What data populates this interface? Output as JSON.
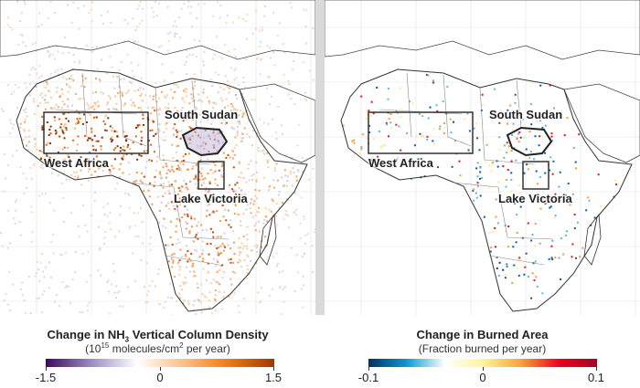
{
  "left_map": {
    "labels": {
      "west_africa": "West Africa",
      "south_sudan": "South Sudan",
      "lake_victoria": "Lake Victoria"
    },
    "legend": {
      "title_prefix": "Change in NH",
      "title_sub": "3",
      "title_suffix": " Vertical Column Density",
      "units_prefix": "(10",
      "units_sup1": "15",
      "units_mid": " molecules/cm",
      "units_sup2": "2",
      "units_suffix": " per year)",
      "ticks": [
        "-1.5",
        "0",
        "1.5"
      ],
      "colors": [
        "#3b0a5c",
        "#9b8cc4",
        "#ffffff",
        "#fdc08a",
        "#f07b12",
        "#9c3a05"
      ]
    }
  },
  "right_map": {
    "labels": {
      "west_africa": "West Africa",
      "south_sudan": "South Sudan",
      "lake_victoria": "Lake Victoria"
    },
    "legend": {
      "title": "Change in Burned Area",
      "units": "(Fraction burned per year)",
      "ticks": [
        "-0.1",
        "0",
        "0.1"
      ],
      "colors": [
        "#053061",
        "#0a9ad0",
        "#ffffff",
        "#fff5a0",
        "#f9a33a",
        "#f0001e",
        "#a50026"
      ]
    }
  }
}
